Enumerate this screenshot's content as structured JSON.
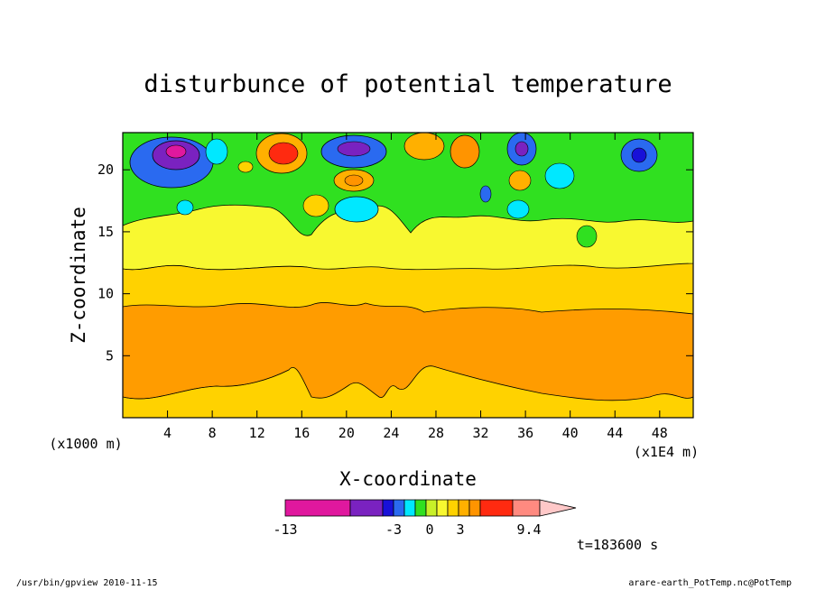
{
  "chart_data": {
    "type": "heatmap",
    "title": "disturbunce of potential temperature",
    "xlabel": "X-coordinate",
    "ylabel": "Z-coordinate",
    "x_unit_left": "(x1000 m)",
    "x_unit_right": "(x1E4 m)",
    "xlim": [
      0,
      51
    ],
    "ylim": [
      0,
      23
    ],
    "x_ticks": [
      4,
      8,
      12,
      16,
      20,
      24,
      28,
      32,
      36,
      40,
      44,
      48
    ],
    "y_ticks": [
      5,
      10,
      15,
      20
    ],
    "colorbar": {
      "labels": [
        "-13",
        "-3",
        "0",
        "3",
        "9.4"
      ],
      "colors": [
        "#e0189e",
        "#7a22c0",
        "#1810d8",
        "#2a6af0",
        "#00e8ff",
        "#30e020",
        "#c8f028",
        "#f8f830",
        "#ffd200",
        "#ffb000",
        "#ff9400",
        "#ff2a10",
        "#ff8a80",
        "#ffc8c8"
      ]
    },
    "levels": [
      {
        "z_from": 0,
        "z_to": 2,
        "band": "yellow-orange"
      },
      {
        "z_from": 2,
        "z_to": 9,
        "band": "orange"
      },
      {
        "z_from": 9,
        "z_to": 12,
        "band": "yellow-orange"
      },
      {
        "z_from": 12,
        "z_to": 17,
        "band": "yellow"
      },
      {
        "z_from": 17,
        "z_to": 23,
        "band": "mixed green/blue/red cells"
      }
    ],
    "time_label": "t=183600 s"
  },
  "footer": {
    "left": "/usr/bin/gpview  2010-11-15",
    "right": "arare-earth_PotTemp.nc@PotTemp"
  }
}
